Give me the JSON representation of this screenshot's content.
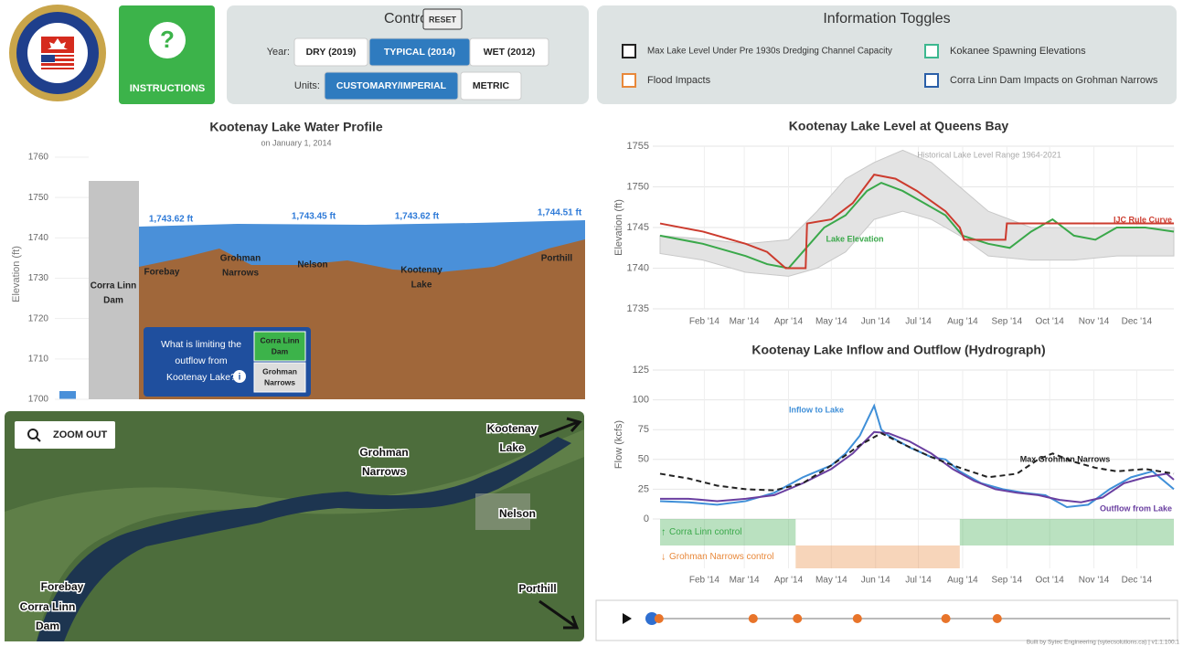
{
  "header": {
    "instructions": "INSTRUCTIONS",
    "instructions_icon": "?"
  },
  "controls": {
    "title": "Controls",
    "reset": "RESET",
    "year_label": "Year:",
    "years": [
      "DRY (2019)",
      "TYPICAL (2014)",
      "WET (2012)"
    ],
    "year_selected": 1,
    "units_label": "Units:",
    "units": [
      "CUSTOMARY/IMPERIAL",
      "METRIC"
    ],
    "unit_selected": 0
  },
  "toggles": {
    "title": "Information Toggles",
    "items": [
      {
        "label": "Max Lake Level Under Pre 1930s Dredging Channel Capacity",
        "color": "#222222"
      },
      {
        "label": "Flood Impacts",
        "color": "#e8883a"
      },
      {
        "label": "Kokanee Spawning Elevations",
        "color": "#3cb88f"
      },
      {
        "label": "Corra Linn Dam Impacts on Grohman Narrows",
        "color": "#2a5fa8"
      }
    ]
  },
  "profile": {
    "title": "Kootenay Lake Water Profile",
    "subtitle": "on January 1, 2014",
    "y_label": "Elevation (ft)",
    "ylim": [
      1700,
      1760
    ],
    "yticks": [
      1700,
      1710,
      1720,
      1730,
      1740,
      1750,
      1760
    ],
    "water_labels": [
      "1,743.62 ft",
      "1,743.45 ft",
      "1,743.62 ft",
      "1,744.51 ft"
    ],
    "locations": [
      {
        "lines": [
          "Corra Linn",
          "Dam"
        ]
      },
      {
        "lines": [
          "Forebay"
        ]
      },
      {
        "lines": [
          "Grohman",
          "Narrows"
        ]
      },
      {
        "lines": [
          "Nelson"
        ]
      },
      {
        "lines": [
          "Kootenay",
          "Lake"
        ]
      },
      {
        "lines": [
          "Porthill"
        ]
      }
    ],
    "question": [
      "What is limiting the",
      "outflow from",
      "Kootenay Lake?"
    ],
    "options": [
      [
        "Corra Linn",
        "Dam"
      ],
      [
        "Grohman",
        "Narrows"
      ]
    ],
    "option_selected": 0
  },
  "map": {
    "zoom": "ZOOM OUT",
    "labels": [
      [
        "Kootenay",
        "Lake"
      ],
      [
        "Grohman",
        "Narrows"
      ],
      [
        "Nelson"
      ],
      [
        "Porthill"
      ],
      [
        "Forebay"
      ],
      [
        "Corra Linn",
        "Dam"
      ]
    ]
  },
  "level_chart": {
    "type": "line",
    "title": "Kootenay Lake Level at Queens Bay",
    "y_label": "Elevation (ft)",
    "xlim": [
      0,
      360
    ],
    "ylim": [
      1735,
      1755
    ],
    "yticks": [
      1735,
      1740,
      1745,
      1750,
      1755
    ],
    "xticks": [
      {
        "value": 31,
        "label": "Feb '14"
      },
      {
        "value": 59,
        "label": "Mar '14"
      },
      {
        "value": 90,
        "label": "Apr '14"
      },
      {
        "value": 120,
        "label": "May '14"
      },
      {
        "value": 151,
        "label": "Jun '14"
      },
      {
        "value": 181,
        "label": "Jul '14"
      },
      {
        "value": 212,
        "label": "Aug '14"
      },
      {
        "value": 243,
        "label": "Sep '14"
      },
      {
        "value": 273,
        "label": "Oct '14"
      },
      {
        "value": 304,
        "label": "Nov '14"
      },
      {
        "value": 334,
        "label": "Dec '14"
      }
    ],
    "grid": true,
    "band": {
      "name": "Historical Lake Level Range 1964-2021",
      "color": "#e3e3e3",
      "x": [
        0,
        30,
        60,
        90,
        110,
        130,
        150,
        170,
        190,
        210,
        230,
        260,
        290,
        320,
        360
      ],
      "lower": [
        1741.8,
        1741,
        1739.5,
        1739,
        1740,
        1742,
        1746,
        1747,
        1746,
        1744,
        1741.5,
        1741,
        1741,
        1741.5,
        1741.5
      ],
      "upper": [
        1744,
        1743.6,
        1743,
        1743.5,
        1747,
        1751,
        1753,
        1754.5,
        1753,
        1750,
        1747,
        1745,
        1745,
        1745,
        1745
      ]
    },
    "series": [
      {
        "name": "Lake Elevation",
        "color": "#3aa84a",
        "x": [
          0,
          30,
          60,
          75,
          90,
          100,
          115,
          130,
          145,
          155,
          170,
          185,
          200,
          212,
          230,
          245,
          260,
          275,
          290,
          305,
          320,
          340,
          360
        ],
        "values": [
          1744,
          1743,
          1741.5,
          1740.5,
          1740,
          1742,
          1745,
          1746.5,
          1749.5,
          1750.5,
          1749.5,
          1748,
          1746.5,
          1744,
          1743,
          1742.5,
          1744.5,
          1746,
          1744,
          1743.5,
          1745,
          1745,
          1744.5
        ]
      },
      {
        "name": "IJC Rule Curve",
        "color": "#cc3b2e",
        "x": [
          0,
          30,
          60,
          75,
          88,
          102,
          103,
          120,
          135,
          150,
          165,
          180,
          200,
          210,
          213,
          242,
          243,
          360
        ],
        "values": [
          1745.5,
          1744.5,
          1743,
          1742,
          1740,
          1740,
          1745.5,
          1746,
          1748,
          1751.5,
          1751,
          1749.5,
          1747,
          1745,
          1743.5,
          1743.5,
          1745.5,
          1745.5
        ]
      }
    ]
  },
  "hydro_chart": {
    "type": "line",
    "title": "Kootenay Lake Inflow and Outflow (Hydrograph)",
    "y_label": "Flow (kcfs)",
    "xlim": [
      0,
      360
    ],
    "ylim": [
      0,
      125
    ],
    "yticks": [
      0,
      25,
      50,
      75,
      100,
      125
    ],
    "xticks": [
      {
        "value": 31,
        "label": "Feb '14"
      },
      {
        "value": 59,
        "label": "Mar '14"
      },
      {
        "value": 90,
        "label": "Apr '14"
      },
      {
        "value": 120,
        "label": "May '14"
      },
      {
        "value": 151,
        "label": "Jun '14"
      },
      {
        "value": 181,
        "label": "Jul '14"
      },
      {
        "value": 212,
        "label": "Aug '14"
      },
      {
        "value": 243,
        "label": "Sep '14"
      },
      {
        "value": 273,
        "label": "Oct '14"
      },
      {
        "value": 304,
        "label": "Nov '14"
      },
      {
        "value": 334,
        "label": "Dec '14"
      }
    ],
    "grid": true,
    "series": [
      {
        "name": "Inflow to Lake",
        "color": "#3f8fd8",
        "x": [
          0,
          20,
          40,
          60,
          80,
          100,
          120,
          130,
          140,
          150,
          155,
          160,
          175,
          190,
          200,
          210,
          225,
          240,
          255,
          270,
          285,
          300,
          315,
          330,
          345,
          360
        ],
        "values": [
          15,
          14,
          12,
          15,
          22,
          35,
          45,
          55,
          70,
          95,
          75,
          70,
          60,
          52,
          50,
          40,
          30,
          25,
          22,
          20,
          10,
          12,
          25,
          35,
          40,
          25
        ]
      },
      {
        "name": "Outflow from Lake",
        "color": "#6a3fa0",
        "x": [
          0,
          20,
          40,
          60,
          80,
          100,
          120,
          135,
          150,
          160,
          175,
          190,
          205,
          220,
          235,
          250,
          265,
          280,
          295,
          310,
          325,
          340,
          355,
          360
        ],
        "values": [
          17,
          17,
          15,
          17,
          20,
          30,
          42,
          55,
          73,
          72,
          65,
          55,
          42,
          32,
          25,
          22,
          20,
          16,
          14,
          18,
          30,
          35,
          38,
          33
        ]
      },
      {
        "name": "Max Grohman Narrows",
        "color": "#222222",
        "dash": true,
        "x": [
          0,
          20,
          40,
          60,
          80,
          100,
          120,
          140,
          155,
          170,
          190,
          210,
          230,
          250,
          265,
          275,
          290,
          305,
          320,
          340,
          360
        ],
        "values": [
          38,
          34,
          28,
          25,
          24,
          30,
          45,
          62,
          72,
          63,
          52,
          43,
          35,
          38,
          50,
          55,
          48,
          43,
          40,
          42,
          38
        ]
      }
    ],
    "controls": [
      {
        "name": "Corra Linn control",
        "color": "#3aa84a",
        "ranges": [
          [
            0,
            95
          ],
          [
            210,
            360
          ]
        ]
      },
      {
        "name": "Grohman Narrows control",
        "color": "#e8883a",
        "ranges": [
          [
            95,
            210
          ]
        ]
      }
    ]
  },
  "timeline": {
    "xlim": [
      0,
      360
    ],
    "markers": [
      0,
      5,
      71,
      102,
      144,
      206,
      242
    ],
    "current": 0
  },
  "footer": "Built by Sytec Engineering (sytecsolutions.ca) | v1.1.100.1"
}
